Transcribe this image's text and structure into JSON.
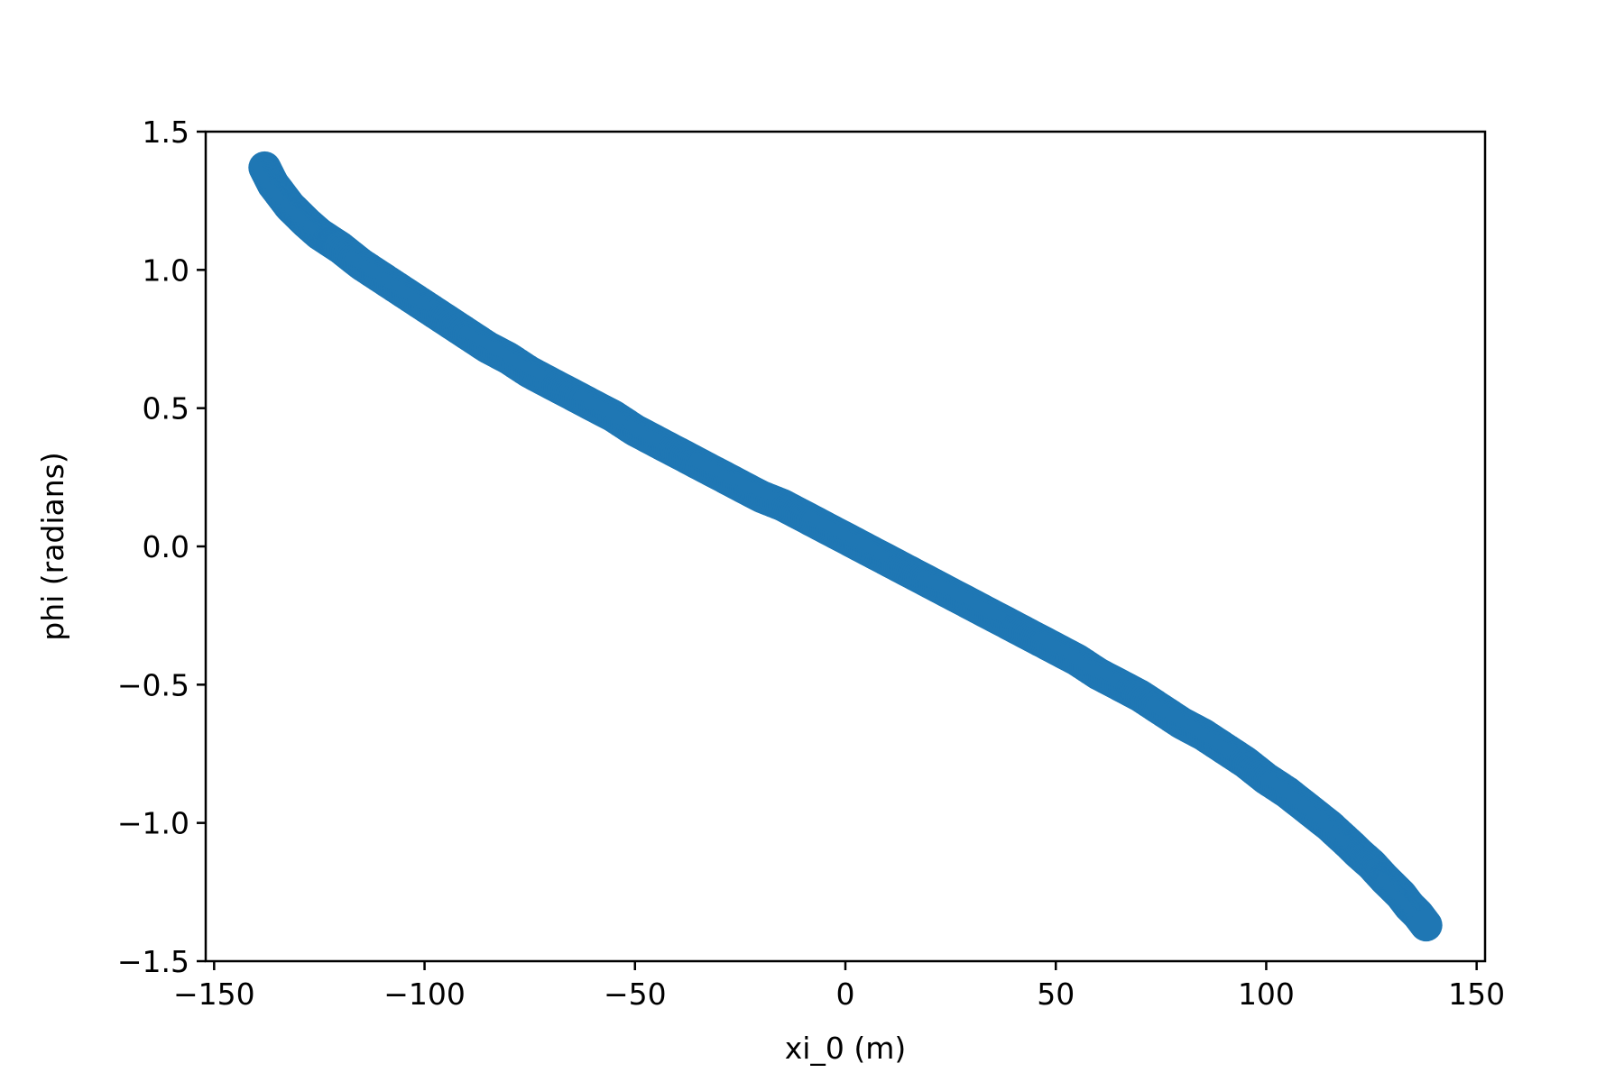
{
  "chart_data": {
    "type": "scatter",
    "title": "",
    "xlabel": "xi_0 (m)",
    "ylabel": "phi (radians)",
    "xlim": [
      -152,
      152
    ],
    "ylim": [
      -1.5,
      1.5
    ],
    "x_ticks": [
      -150,
      -100,
      -50,
      0,
      50,
      100,
      150
    ],
    "x_tick_labels": [
      "−150",
      "−100",
      "−50",
      "0",
      "50",
      "100",
      "150"
    ],
    "y_ticks": [
      -1.5,
      -1.0,
      -0.5,
      0.0,
      0.5,
      1.0,
      1.5
    ],
    "y_tick_labels": [
      "−1.5",
      "−1.0",
      "−0.5",
      "0.0",
      "0.5",
      "1.0",
      "1.5"
    ],
    "grid": false,
    "marker_color": "#1f77b4",
    "series": [
      {
        "x": [
          -138,
          -136,
          -134,
          -132,
          -130,
          -128,
          -125,
          -122,
          -120,
          -115,
          -110,
          -105,
          -100,
          -95,
          -90,
          -85,
          -80,
          -75,
          -70,
          -65,
          -60,
          -55,
          -50,
          -45,
          -40,
          -35,
          -30,
          -25,
          -20,
          -15,
          -10,
          -5,
          0,
          5,
          10,
          15,
          20,
          25,
          30,
          35,
          40,
          45,
          50,
          55,
          60,
          65,
          70,
          75,
          80,
          85,
          90,
          95,
          100,
          105,
          110,
          115,
          120,
          122,
          125,
          128,
          130,
          132,
          134,
          136,
          138
        ],
        "y": [
          1.37,
          1.31,
          1.27,
          1.23,
          1.2,
          1.17,
          1.13,
          1.1,
          1.08,
          1.02,
          0.97,
          0.92,
          0.87,
          0.82,
          0.77,
          0.72,
          0.68,
          0.63,
          0.59,
          0.55,
          0.51,
          0.47,
          0.42,
          0.38,
          0.34,
          0.3,
          0.26,
          0.22,
          0.18,
          0.15,
          0.11,
          0.07,
          0.03,
          -0.01,
          -0.05,
          -0.09,
          -0.13,
          -0.17,
          -0.21,
          -0.25,
          -0.29,
          -0.33,
          -0.37,
          -0.41,
          -0.46,
          -0.5,
          -0.54,
          -0.59,
          -0.64,
          -0.68,
          -0.73,
          -0.78,
          -0.84,
          -0.89,
          -0.95,
          -1.01,
          -1.08,
          -1.11,
          -1.15,
          -1.2,
          -1.23,
          -1.26,
          -1.3,
          -1.33,
          -1.37
        ]
      }
    ]
  }
}
